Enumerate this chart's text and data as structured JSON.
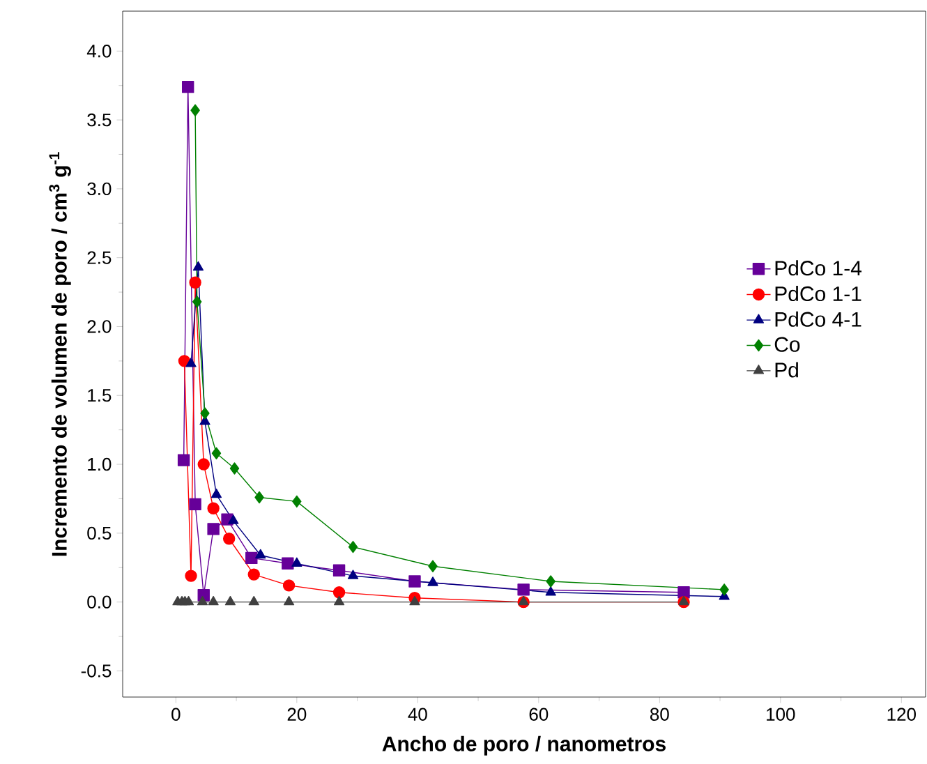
{
  "chart_data": {
    "type": "line",
    "xlabel": "Ancho de poro / nanometros",
    "ylabel": "Incremento de volumen de poro / cm$^{3}$ g$^{-1}$",
    "xlim": [
      -8.8,
      124
    ],
    "ylim": [
      -0.69,
      4.29
    ],
    "xticks": [
      0,
      20,
      40,
      60,
      80,
      100,
      120
    ],
    "yticks": [
      {
        "value": -0.5,
        "label": "-0.5"
      },
      {
        "value": 0,
        "label": "0.0"
      },
      {
        "value": 0.5,
        "label": "0.5"
      },
      {
        "value": 1,
        "label": "1.0"
      },
      {
        "value": 1.5,
        "label": "1.5"
      },
      {
        "value": 2,
        "label": "2.0"
      },
      {
        "value": 2.5,
        "label": "2.5"
      },
      {
        "value": 3,
        "label": "3.0"
      },
      {
        "value": 3.5,
        "label": "3.5"
      },
      {
        "value": 4,
        "label": "4.0"
      }
    ],
    "grid": false,
    "legend": "right",
    "line_style": "solid",
    "series": [
      {
        "name": "PdCo 1-4",
        "color": "#660099",
        "marker": "square",
        "x": [
          1.3,
          2.0,
          3.2,
          4.6,
          6.2,
          8.5,
          12.5,
          18.5,
          27,
          39.5,
          57.5,
          84
        ],
        "values": [
          1.03,
          3.74,
          0.71,
          0.05,
          0.53,
          0.6,
          0.32,
          0.28,
          0.23,
          0.15,
          0.09,
          0.07
        ]
      },
      {
        "name": "PdCo 1-1",
        "color": "#ff0000",
        "marker": "circle",
        "x": [
          1.4,
          2.5,
          3.2,
          4.6,
          6.2,
          8.8,
          12.9,
          18.7,
          27,
          39.5,
          57.5,
          84
        ],
        "values": [
          1.75,
          0.19,
          2.32,
          1.0,
          0.68,
          0.46,
          0.2,
          0.12,
          0.07,
          0.03,
          0.0,
          0.0
        ]
      },
      {
        "name": "PdCo 4-1",
        "color": "#000080",
        "marker": "triangle",
        "x": [
          2.5,
          3.7,
          4.8,
          6.7,
          9.5,
          14,
          20,
          29.3,
          42.5,
          62,
          90.7
        ],
        "values": [
          1.73,
          2.43,
          1.31,
          0.78,
          0.59,
          0.34,
          0.28,
          0.19,
          0.14,
          0.07,
          0.04
        ]
      },
      {
        "name": "Co",
        "color": "#008000",
        "marker": "diamond",
        "x": [
          3.2,
          3.5,
          4.8,
          6.7,
          9.7,
          13.8,
          20,
          29.3,
          42.5,
          62,
          90.7
        ],
        "values": [
          3.57,
          2.18,
          1.37,
          1.08,
          0.97,
          0.76,
          0.73,
          0.4,
          0.26,
          0.15,
          0.09
        ]
      },
      {
        "name": "Pd",
        "color": "#404040",
        "marker": "triangle down",
        "x": [
          0.3,
          1.0,
          1.5,
          2.1,
          4.4,
          6.2,
          9,
          12.9,
          18.7,
          27,
          39.5,
          57.5,
          84
        ],
        "values": [
          0,
          0,
          0,
          0,
          0,
          0,
          0,
          0,
          0,
          0,
          0,
          0,
          0
        ]
      }
    ]
  }
}
